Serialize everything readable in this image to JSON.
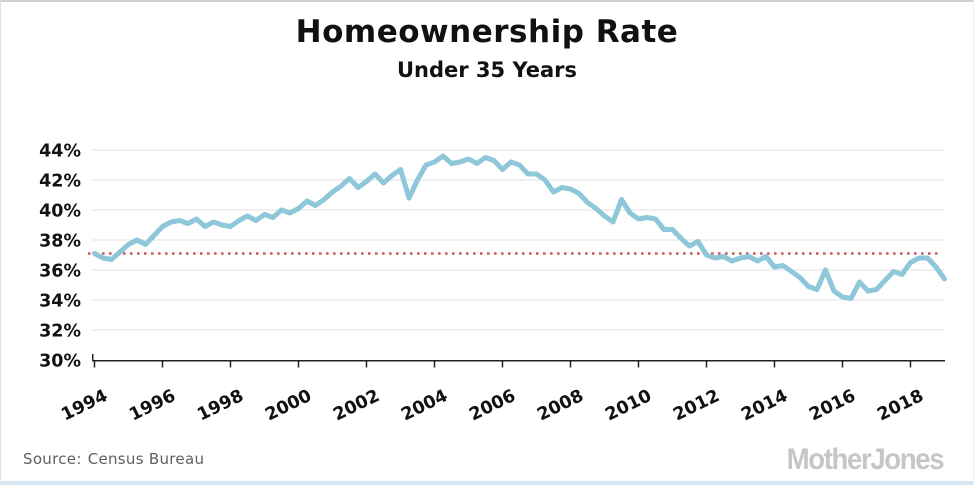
{
  "page": {
    "title": "Homeownership Rate",
    "subtitle": "Under 35 Years"
  },
  "footer": {
    "source_label": "Source:",
    "source_value": "Census Bureau",
    "logo_text": "MotherJones"
  },
  "colors": {
    "line": "#8ec7d9",
    "reference_line": "#c9595a",
    "grid": "#e7e7e7",
    "axis": "#222222",
    "tick_label": "#111111",
    "source_text": "#606060",
    "logo": "#c6c6c6",
    "accent_bar": "#d9e7f3"
  },
  "chart_data": {
    "type": "line",
    "title": "Homeownership Rate",
    "subtitle": "Under 35 Years",
    "xlabel": "",
    "ylabel": "",
    "grid": true,
    "legend": "none",
    "ylim": [
      30,
      44
    ],
    "xlim": [
      1994,
      2019
    ],
    "yticks": [
      "30%",
      "32%",
      "34%",
      "36%",
      "38%",
      "40%",
      "42%",
      "44%"
    ],
    "ytick_values": [
      30,
      32,
      34,
      36,
      38,
      40,
      42,
      44
    ],
    "xticks": [
      "1994",
      "1996",
      "1998",
      "2000",
      "2002",
      "2004",
      "2006",
      "2008",
      "2010",
      "2012",
      "2014",
      "2016",
      "2018"
    ],
    "xtick_values": [
      1994,
      1996,
      1998,
      2000,
      2002,
      2004,
      2006,
      2008,
      2010,
      2012,
      2014,
      2016,
      2018
    ],
    "reference_line": {
      "value": 37.1,
      "style": "dotted"
    },
    "frequency": "quarterly",
    "x_start_year": 1994,
    "x_step_years": 0.25,
    "series": [
      {
        "name": "Homeownership rate, under 35 years",
        "values": [
          37.1,
          36.8,
          36.7,
          37.2,
          37.7,
          38.0,
          37.7,
          38.3,
          38.9,
          39.2,
          39.3,
          39.1,
          39.4,
          38.9,
          39.2,
          39.0,
          38.9,
          39.3,
          39.6,
          39.3,
          39.7,
          39.5,
          40.0,
          39.8,
          40.1,
          40.6,
          40.3,
          40.7,
          41.2,
          41.6,
          42.1,
          41.5,
          41.9,
          42.4,
          41.8,
          42.3,
          42.7,
          40.8,
          42.0,
          43.0,
          43.2,
          43.6,
          43.1,
          43.2,
          43.4,
          43.1,
          43.5,
          43.3,
          42.7,
          43.2,
          43.0,
          42.4,
          42.4,
          42.0,
          41.2,
          41.5,
          41.4,
          41.1,
          40.5,
          40.1,
          39.6,
          39.2,
          40.7,
          39.8,
          39.4,
          39.5,
          39.4,
          38.7,
          38.7,
          38.1,
          37.6,
          37.9,
          37.0,
          36.8,
          36.9,
          36.6,
          36.8,
          36.9,
          36.6,
          36.9,
          36.2,
          36.3,
          35.9,
          35.5,
          34.9,
          34.7,
          36.0,
          34.6,
          34.2,
          34.1,
          35.2,
          34.6,
          34.7,
          35.3,
          35.9,
          35.7,
          36.5,
          36.8,
          36.8,
          36.2,
          35.4
        ]
      }
    ]
  }
}
